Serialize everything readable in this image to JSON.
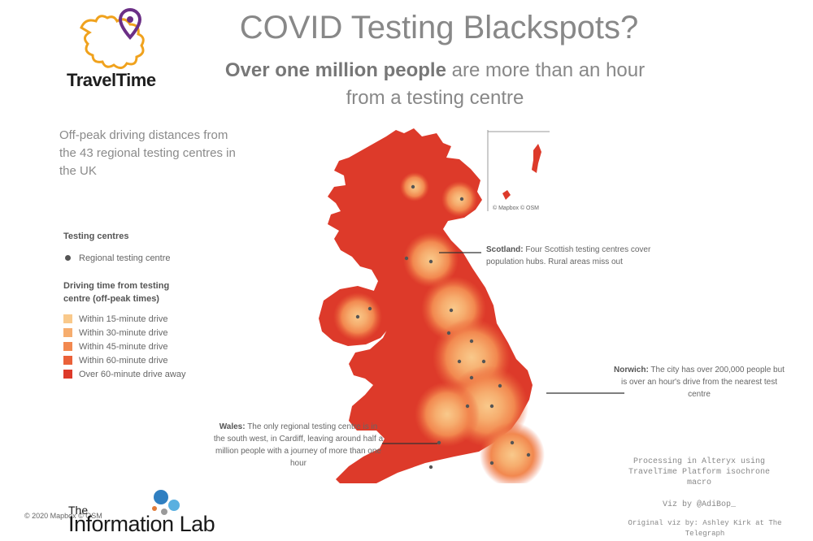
{
  "brand": {
    "traveltime": "TravelTime",
    "infolab_the": "The",
    "infolab_name": "Information Lab",
    "copyright": "© 2020 Mapbox © OSM"
  },
  "header": {
    "title": "COVID Testing Blackspots?",
    "subtitle_bold": "Over one million people",
    "subtitle_rest": "are more than an hour",
    "subtitle_line2": "from a testing centre"
  },
  "description": "Off-peak driving distances from the 43 regional testing centres in the UK",
  "legend": {
    "centres_title": "Testing centres",
    "centre_label": "Regional testing centre",
    "drive_title": "Driving time from testing centre (off-peak times)",
    "items": [
      {
        "label": "Within 15-minute drive",
        "color": "#f9c98b"
      },
      {
        "label": "Within 30-minute drive",
        "color": "#f6ad6e"
      },
      {
        "label": "Within 45-minute drive",
        "color": "#f2884f"
      },
      {
        "label": "Within 60-minute drive",
        "color": "#ea6139"
      },
      {
        "label": "Over 60-minute drive away",
        "color": "#dd3a2a"
      }
    ]
  },
  "map": {
    "inset_credit": "© Mapbox © OSM",
    "base_color": "#dd3a2a"
  },
  "annotations": {
    "scotland_head": "Scotland:",
    "scotland_body": "Four Scottish testing centres cover population hubs. Rural areas miss out",
    "norwich_head": "Norwich:",
    "norwich_body": "The city has over 200,000 people but is over an hour's drive from the nearest test centre",
    "wales_head": "Wales:",
    "wales_body": "The only regional testing centre is in the south west, in Cardiff, leaving around half a million people with a journey of more than one hour"
  },
  "footer": {
    "processing": "Processing in Alteryx using TravelTime Platform isochrone macro",
    "viz_by": "Viz by @AdiBop_",
    "original": "Original viz by: Ashley Kirk at The Telegraph"
  }
}
